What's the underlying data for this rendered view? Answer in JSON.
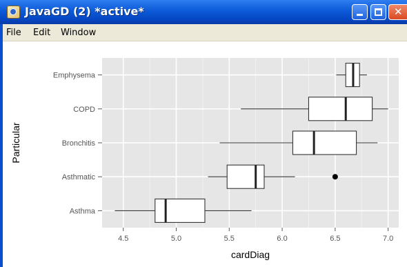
{
  "window": {
    "title": "JavaGD (2) *active*",
    "icon": "java-icon",
    "controls": [
      "minimize-icon",
      "maximize-icon",
      "close-icon"
    ]
  },
  "menubar": {
    "items": [
      "File",
      "Edit",
      "Window"
    ]
  },
  "chart_data": {
    "type": "boxplot",
    "xlabel": "cardDiag",
    "ylabel": "Particular",
    "xlim": [
      4.3,
      7.1
    ],
    "x_ticks": [
      "4.5",
      "5.0",
      "5.5",
      "6.0",
      "6.5",
      "7.0"
    ],
    "categories": [
      "Asthma",
      "Asthmatic",
      "Bronchitis",
      "COPD",
      "Emphysema"
    ],
    "boxes": [
      {
        "category": "Asthma",
        "whisker_low": 4.42,
        "q1": 4.8,
        "median": 4.9,
        "q3": 5.27,
        "whisker_high": 5.71,
        "outliers": []
      },
      {
        "category": "Asthmatic",
        "whisker_low": 5.3,
        "q1": 5.48,
        "median": 5.75,
        "q3": 5.83,
        "whisker_high": 6.12,
        "outliers": [
          6.5
        ]
      },
      {
        "category": "Bronchitis",
        "whisker_low": 5.41,
        "q1": 6.1,
        "median": 6.3,
        "q3": 6.7,
        "whisker_high": 6.9,
        "outliers": []
      },
      {
        "category": "COPD",
        "whisker_low": 5.61,
        "q1": 6.25,
        "median": 6.6,
        "q3": 6.85,
        "whisker_high": 7.0,
        "outliers": []
      },
      {
        "category": "Emphysema",
        "whisker_low": 6.51,
        "q1": 6.6,
        "median": 6.67,
        "q3": 6.73,
        "whisker_high": 6.8,
        "outliers": []
      }
    ],
    "grid": true,
    "panel_color": "#e6e6e6",
    "grid_color": "#ffffff"
  }
}
